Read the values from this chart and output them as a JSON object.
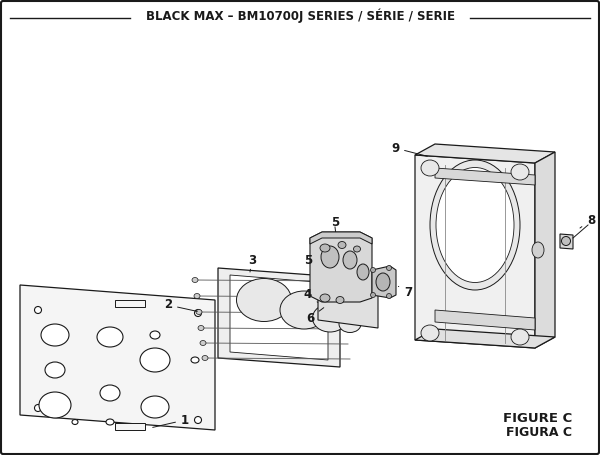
{
  "title": "BLACK MAX – BM10700J SERIES / SÉRIE / SERIE",
  "bg_color": "#ffffff",
  "fig_label1": "FIGURE C",
  "fig_label2": "FIGURA C",
  "title_fontsize": 8.5,
  "lc": "#1a1a1a"
}
